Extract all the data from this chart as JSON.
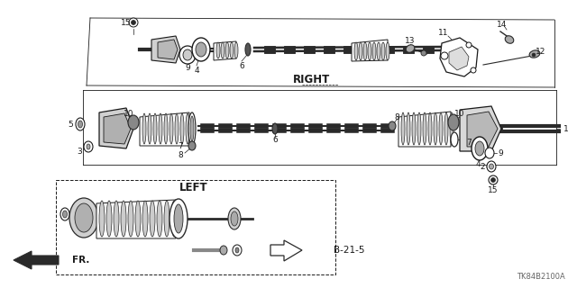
{
  "background_color": "#ffffff",
  "line_color": "#1a1a1a",
  "gray_dark": "#2a2a2a",
  "gray_mid": "#555555",
  "gray_light": "#aaaaaa",
  "gray_fill": "#888888",
  "part_code": "TK84B2100A",
  "right_label": "RIGHT",
  "left_label": "LEFT",
  "fr_label": "FR.",
  "b215_label": "B-21-5"
}
